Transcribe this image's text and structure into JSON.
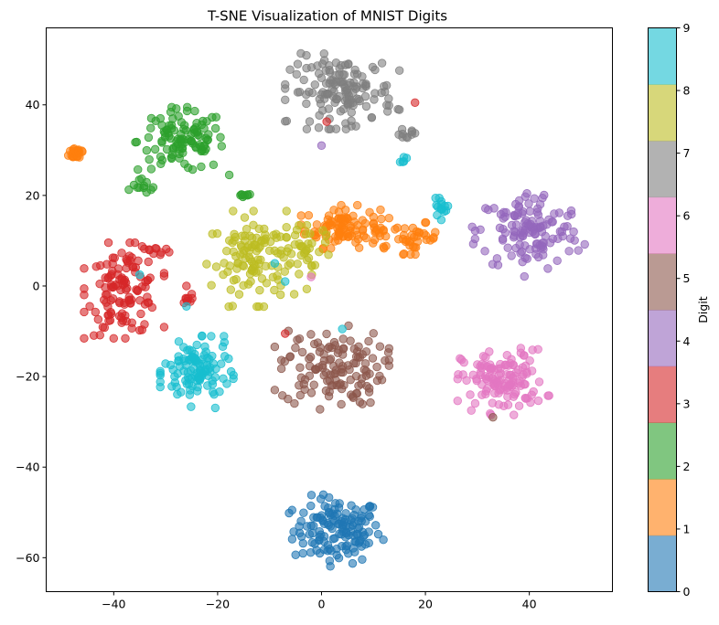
{
  "chart_data": {
    "type": "scatter",
    "title": "T-SNE Visualization of MNIST Digits",
    "xlim": [
      -53,
      56
    ],
    "ylim": [
      -67.5,
      57
    ],
    "x_ticks": [
      -40,
      -20,
      0,
      20,
      40
    ],
    "y_ticks": [
      -60,
      -40,
      -20,
      0,
      20,
      40
    ],
    "grid": false,
    "colorbar": {
      "label": "Digit",
      "range": [
        0,
        9
      ],
      "ticks": [
        0,
        1,
        2,
        3,
        4,
        5,
        6,
        7,
        8,
        9
      ],
      "colors": [
        "#1f77b4",
        "#ff7f0e",
        "#2ca02c",
        "#d62728",
        "#9467bd",
        "#8c564b",
        "#e377c2",
        "#7f7f7f",
        "#bcbd22",
        "#17becf"
      ]
    },
    "point_opacity": 0.6,
    "clusters": [
      {
        "digit": 0,
        "center": [
          3,
          -54
        ],
        "spread": [
          4.2,
          3.6
        ],
        "count": 140
      },
      {
        "digit": 1,
        "center": [
          -47,
          29.5
        ],
        "spread": [
          0.8,
          0.8
        ],
        "count": 25
      },
      {
        "digit": 1,
        "center": [
          4,
          13
        ],
        "spread": [
          3.6,
          2.2
        ],
        "count": 95
      },
      {
        "digit": 1,
        "center": [
          18,
          10.5
        ],
        "spread": [
          2.2,
          1.6
        ],
        "count": 35
      },
      {
        "digit": 1,
        "center": [
          11,
          11
        ],
        "spread": [
          1.5,
          1.5
        ],
        "count": 10
      },
      {
        "digit": 2,
        "center": [
          -27,
          32
        ],
        "spread": [
          4.2,
          3.4
        ],
        "count": 110
      },
      {
        "digit": 2,
        "center": [
          -34,
          22
        ],
        "spread": [
          1.4,
          0.8
        ],
        "count": 12
      },
      {
        "digit": 2,
        "center": [
          -15,
          19.8
        ],
        "spread": [
          0.8,
          0.3
        ],
        "count": 8
      },
      {
        "digit": 3,
        "center": [
          -38,
          -1
        ],
        "spread": [
          3.5,
          4.8
        ],
        "count": 120
      },
      {
        "digit": 3,
        "center": [
          -32,
          8
        ],
        "spread": [
          1.6,
          0.5
        ],
        "count": 10
      },
      {
        "digit": 3,
        "center": [
          -26,
          -3
        ],
        "spread": [
          0.5,
          0.6
        ],
        "count": 8
      },
      {
        "digit": 4,
        "center": [
          40,
          12
        ],
        "spread": [
          5,
          4.5
        ],
        "count": 130
      },
      {
        "digit": 5,
        "center": [
          2,
          -18
        ],
        "spread": [
          5,
          4.2
        ],
        "count": 130
      },
      {
        "digit": 6,
        "center": [
          35,
          -21
        ],
        "spread": [
          4,
          3.4
        ],
        "count": 130
      },
      {
        "digit": 7,
        "center": [
          4,
          43
        ],
        "spread": [
          5,
          3.8
        ],
        "count": 140
      },
      {
        "digit": 7,
        "center": [
          16,
          33.5
        ],
        "spread": [
          1.2,
          0.5
        ],
        "count": 10
      },
      {
        "digit": 8,
        "center": [
          -12,
          6
        ],
        "spread": [
          4.6,
          4.8
        ],
        "count": 130
      },
      {
        "digit": 8,
        "center": [
          -2,
          9
        ],
        "spread": [
          2,
          2
        ],
        "count": 20
      },
      {
        "digit": 9,
        "center": [
          -24,
          -19
        ],
        "spread": [
          3.2,
          3.6
        ],
        "count": 110
      },
      {
        "digit": 9,
        "center": [
          23,
          17
        ],
        "spread": [
          0.7,
          1.1
        ],
        "count": 15
      },
      {
        "digit": 9,
        "center": [
          15.5,
          28
        ],
        "spread": [
          0.4,
          0.3
        ],
        "count": 5
      }
    ],
    "outliers": [
      [
        1,
        36.3,
        3
      ],
      [
        18,
        40.5,
        3
      ],
      [
        -7,
        -10.5,
        3
      ],
      [
        -26,
        0,
        3
      ],
      [
        0,
        31,
        4
      ],
      [
        -2,
        2,
        6
      ],
      [
        4,
        -9.5,
        9
      ],
      [
        -26,
        -4.5,
        9
      ],
      [
        -35,
        2.5,
        9
      ],
      [
        -9,
        5,
        9
      ],
      [
        -23,
        -11,
        9
      ],
      [
        -7,
        1,
        9
      ],
      [
        33,
        -29,
        5
      ],
      [
        -24,
        -13,
        9
      ],
      [
        -21,
        11.5,
        8
      ],
      [
        13,
        15,
        1
      ]
    ]
  }
}
